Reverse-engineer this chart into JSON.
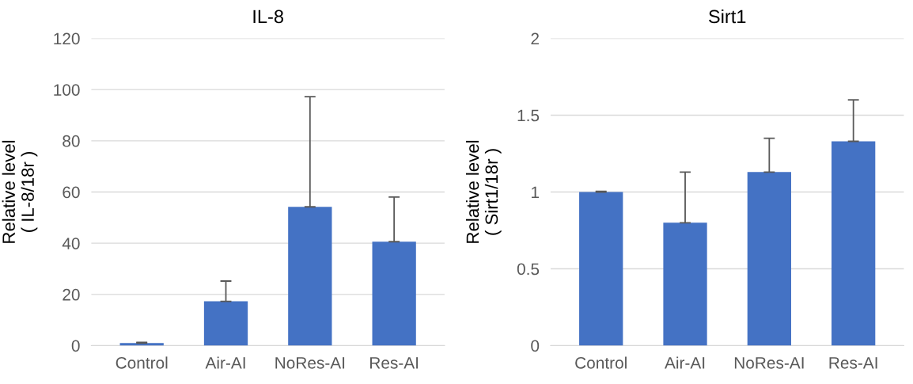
{
  "chart_data": [
    {
      "type": "bar",
      "title": "IL-8",
      "ylabel": "Relative level\n( IL-8/18r )",
      "categories": [
        "Control",
        "Air-AI",
        "NoRes-AI",
        "Res-AI"
      ],
      "values": [
        1,
        17.3,
        54.2,
        40.6
      ],
      "errors": [
        0.3,
        7.9,
        43,
        17.4
      ],
      "color": "#4472c4",
      "ylim": [
        0,
        120
      ],
      "yticks": [
        0,
        20,
        40,
        60,
        80,
        100,
        120
      ],
      "grid": "y"
    },
    {
      "type": "bar",
      "title": "Sirt1",
      "ylabel": "Relative level\n( Sirt1/18r )",
      "categories": [
        "Control",
        "Air-AI",
        "NoRes-AI",
        "Res-AI"
      ],
      "values": [
        1,
        0.8,
        1.13,
        1.33
      ],
      "errors": [
        0.005,
        0.33,
        0.22,
        0.27
      ],
      "color": "#4472c4",
      "ylim": [
        0,
        2
      ],
      "yticks": [
        0,
        0.5,
        1,
        1.5,
        2
      ],
      "grid": "y"
    }
  ]
}
